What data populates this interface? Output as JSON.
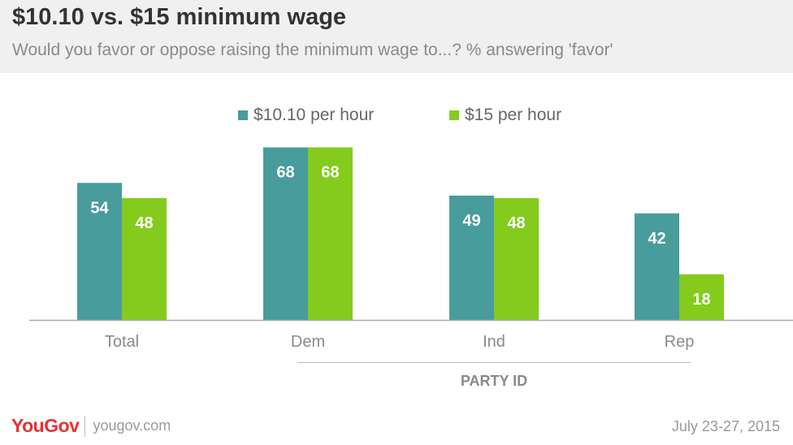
{
  "header": {
    "title": "$10.10 vs. $15 minimum wage",
    "subtitle": "Would you favor or oppose raising the minimum wage to...? % answering 'favor'"
  },
  "colors": {
    "series1": "#489c9c",
    "series2": "#84cb1e",
    "axis": "#aaaaaa",
    "header_bg": "#f0f0f0"
  },
  "chart_data": {
    "type": "bar",
    "categories": [
      "Total",
      "Dem",
      "Ind",
      "Rep"
    ],
    "series": [
      {
        "name": "$10.10 per hour",
        "values": [
          54,
          68,
          49,
          42
        ]
      },
      {
        "name": "$15 per hour",
        "values": [
          48,
          68,
          48,
          18
        ]
      }
    ],
    "group_label": "PARTY ID",
    "ylim": [
      0,
      70
    ],
    "legend_position": "top-center",
    "grid": false
  },
  "footer": {
    "logo": "YouGov",
    "site": "yougov.com",
    "date": "July 23-27, 2015"
  }
}
